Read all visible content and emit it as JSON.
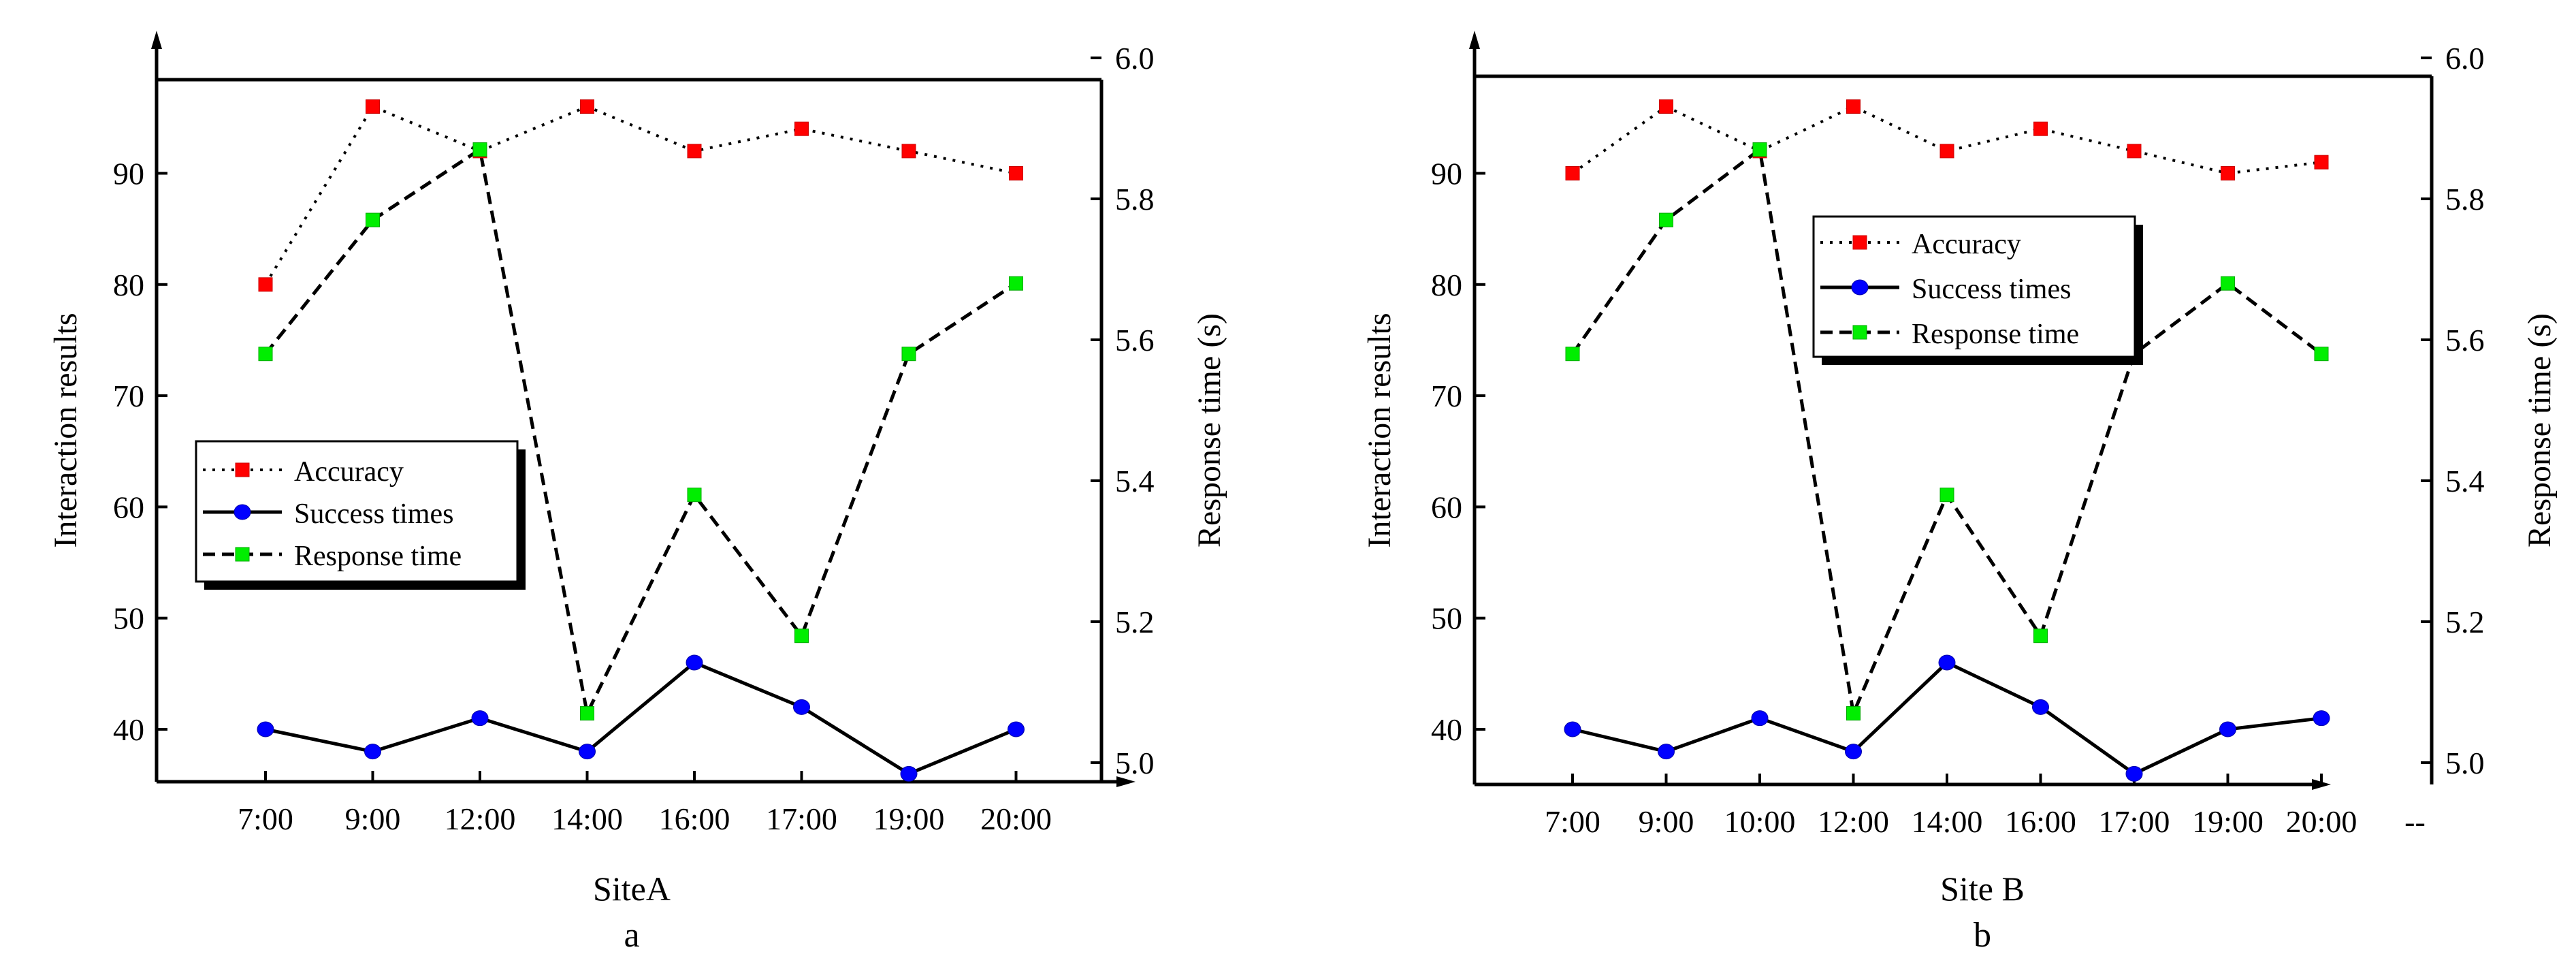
{
  "figure": {
    "x_tick_labels_by_panel": [
      [
        "7:00",
        "9:00",
        "12:00",
        "14:00",
        "16:00",
        "17:00",
        "19:00",
        "20:00"
      ],
      [
        "7:00",
        "9:00",
        "10:00",
        "12:00",
        "14:00",
        "16:00",
        "17:00",
        "19:00",
        "20:00",
        "--"
      ]
    ]
  },
  "chart_data": [
    {
      "type": "line",
      "panel_label": "a",
      "xlabel": "SiteA",
      "ylabel_left": "Interaction results",
      "ylabel_right": "Response time (s)",
      "categories": [
        "7:00",
        "9:00",
        "12:00",
        "14:00",
        "16:00",
        "17:00",
        "19:00",
        "20:00"
      ],
      "ylim_left": [
        35,
        99
      ],
      "yticks_left": [
        40,
        50,
        60,
        70,
        80,
        90
      ],
      "ylim_right": [
        4.98,
        6.0
      ],
      "yticks_right": [
        5.0,
        5.2,
        5.4,
        5.6,
        5.8,
        6.0
      ],
      "legend_position": "middle-left",
      "series": [
        {
          "name": "Accuracy",
          "axis": "left",
          "color": "#ff0000",
          "marker": "square",
          "line_style": "dotted",
          "values": [
            80,
            96,
            92,
            96,
            92,
            94,
            92,
            90
          ]
        },
        {
          "name": "Success times",
          "axis": "left",
          "color": "#0000ff",
          "marker": "circle",
          "line_style": "solid",
          "values": [
            40,
            38,
            41,
            38,
            46,
            42,
            36,
            40
          ]
        },
        {
          "name": "Response time",
          "axis": "right",
          "color": "#00ee00",
          "marker": "square",
          "line_style": "dashed",
          "values": [
            5.58,
            5.77,
            5.87,
            5.07,
            5.38,
            5.18,
            5.58,
            5.68
          ]
        }
      ]
    },
    {
      "type": "line",
      "panel_label": "b",
      "xlabel": "Site B",
      "ylabel_left": "Interaction results",
      "ylabel_right": "Response time (s)",
      "categories": [
        "7:00",
        "9:00",
        "10:00",
        "12:00",
        "14:00",
        "16:00",
        "17:00",
        "19:00",
        "20:00"
      ],
      "ylim_left": [
        35,
        99
      ],
      "yticks_left": [
        40,
        50,
        60,
        70,
        80,
        90
      ],
      "ylim_right": [
        4.98,
        6.0
      ],
      "yticks_right": [
        5.0,
        5.2,
        5.4,
        5.6,
        5.8,
        6.0
      ],
      "legend_position": "upper-center",
      "series": [
        {
          "name": "Accuracy",
          "axis": "left",
          "color": "#ff0000",
          "marker": "square",
          "line_style": "dotted",
          "values": [
            90,
            96,
            92,
            96,
            92,
            94,
            92,
            90,
            91
          ]
        },
        {
          "name": "Success times",
          "axis": "left",
          "color": "#0000ff",
          "marker": "circle",
          "line_style": "solid",
          "values": [
            40,
            38,
            41,
            38,
            46,
            42,
            36,
            40,
            41
          ]
        },
        {
          "name": "Response time",
          "axis": "right",
          "color": "#00ee00",
          "marker": "square",
          "line_style": "dashed",
          "values": [
            5.58,
            5.77,
            5.87,
            5.07,
            5.38,
            5.18,
            5.58,
            5.68,
            5.58
          ]
        }
      ]
    }
  ]
}
